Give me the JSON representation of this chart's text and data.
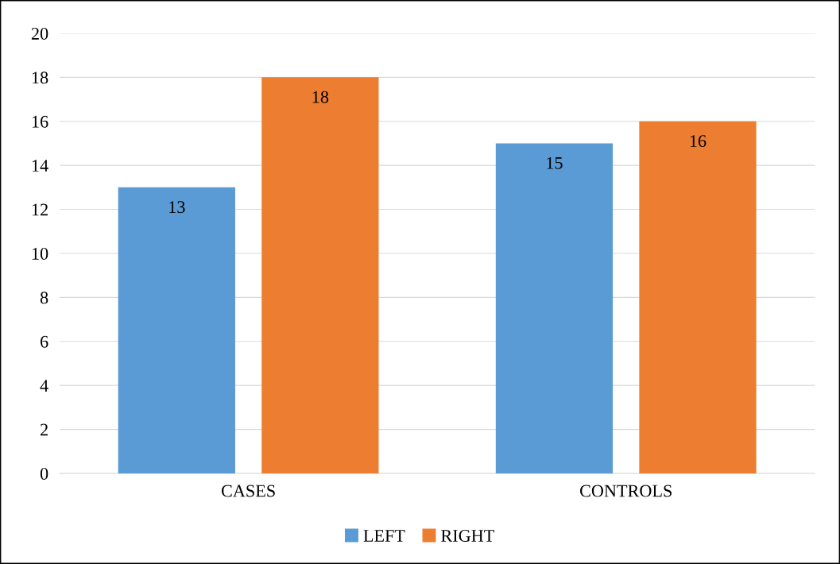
{
  "chart_data": {
    "type": "bar",
    "categories": [
      "CASES",
      "CONTROLS"
    ],
    "series": [
      {
        "name": "LEFT",
        "color": "#5b9bd5",
        "values": [
          13,
          15
        ]
      },
      {
        "name": "RIGHT",
        "color": "#ed7d31",
        "values": [
          18,
          16
        ]
      }
    ],
    "ylim": [
      0,
      20
    ],
    "yticks": [
      0,
      2,
      4,
      6,
      8,
      10,
      12,
      14,
      16,
      18,
      20
    ],
    "grid": "y",
    "legend": "bottom",
    "data_labels": true
  }
}
